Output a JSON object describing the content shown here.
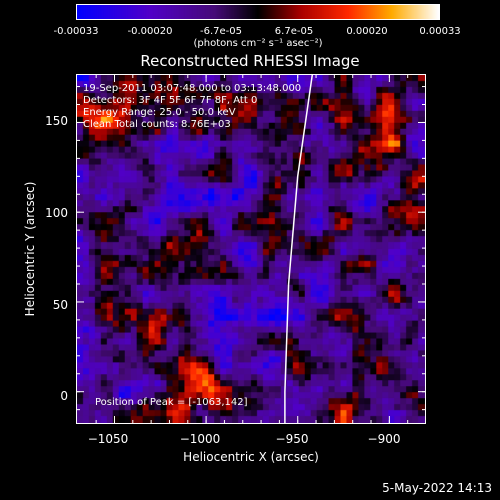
{
  "colorbar": {
    "tick_labels": [
      "-0.00033",
      "-0.00020",
      "-6.7e-05",
      "6.7e-05",
      "0.00020",
      "0.00033"
    ],
    "units": "(photons cm⁻² s⁻¹ asec⁻²)"
  },
  "chart_data": {
    "type": "heatmap",
    "title": "Reconstructed RHESSI Image",
    "xlabel": "Heliocentric X (arcsec)",
    "ylabel": "Heliocentric Y (arcsec)",
    "xlim": [
      -1071,
      -880
    ],
    "ylim": [
      -18,
      177
    ],
    "x_ticks": [
      -1050,
      -1000,
      -950,
      -900
    ],
    "y_ticks": [
      0,
      50,
      100,
      150
    ],
    "x_tick_labels": [
      "−1050",
      "−1000",
      "−950",
      "−900"
    ],
    "y_tick_labels": [
      "0",
      "50",
      "100",
      "150"
    ],
    "value_range": [
      -0.00033,
      0.00033
    ],
    "peak": [
      -1063,
      142
    ],
    "limb_curve": [
      [
        -942,
        177
      ],
      [
        -950,
        120
      ],
      [
        -955,
        60
      ],
      [
        -957,
        0
      ],
      [
        -957,
        -18
      ]
    ]
  },
  "annotations": {
    "line1": "19-Sep-2011 03:07:48.000 to 03:13:48.000",
    "line2": "Detectors: 3F 4F 5F 6F 7F 8F, Att 0",
    "line3": "Energy Range: 25.0 - 50.0 keV",
    "line4": "Clean     Total counts: 8.76E+03",
    "peak_text": "Position of Peak = [-1063,142]"
  },
  "footer": {
    "datestamp": "5-May-2022 14:13"
  }
}
